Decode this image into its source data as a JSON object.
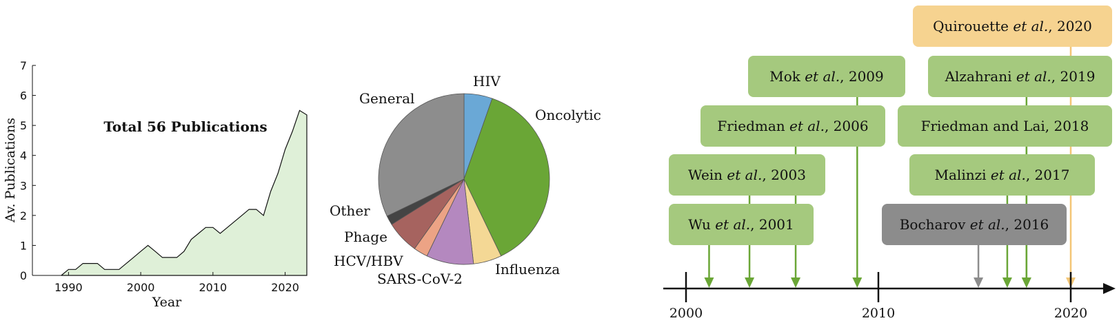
{
  "colors": {
    "area_fill": "#dff0d8",
    "green_box": "#a5c97e",
    "grey_box": "#8c8c8c",
    "orange_box": "#f6d390",
    "green_arrow": "#6aa636",
    "grey_arrow": "#8c8c8c",
    "orange_arrow": "#f3c676"
  },
  "chart_data": [
    {
      "type": "area",
      "title": "Total 56 Publications",
      "xlabel": "Year",
      "ylabel": "Av. Publications",
      "xlim": [
        1985,
        2023
      ],
      "ylim": [
        0,
        7
      ],
      "xticks": [
        "1990",
        "2000",
        "2010",
        "2020"
      ],
      "yticks": [
        "0",
        "1",
        "2",
        "3",
        "4",
        "5",
        "6",
        "7"
      ],
      "x": [
        1989,
        1990,
        1991,
        1992,
        1993,
        1994,
        1995,
        1996,
        1997,
        1998,
        1999,
        2000,
        2001,
        2002,
        2003,
        2004,
        2005,
        2006,
        2007,
        2008,
        2009,
        2010,
        2011,
        2012,
        2013,
        2014,
        2015,
        2016,
        2017,
        2018,
        2019,
        2020,
        2021,
        2022,
        2023
      ],
      "y": [
        0,
        0.2,
        0.2,
        0.4,
        0.4,
        0.4,
        0.2,
        0.2,
        0.2,
        0.4,
        0.6,
        0.8,
        1.0,
        0.8,
        0.6,
        0.6,
        0.6,
        0.8,
        1.2,
        1.4,
        1.6,
        1.6,
        1.4,
        1.6,
        1.8,
        2.0,
        2.2,
        2.2,
        2.0,
        2.8,
        3.4,
        4.2,
        4.8,
        5.5,
        5.35
      ]
    },
    {
      "type": "pie",
      "slices": [
        {
          "label": "HIV",
          "value": 3,
          "color": "#6aa8d6"
        },
        {
          "label": "Oncolytic",
          "value": 21,
          "color": "#6aa636"
        },
        {
          "label": "Influenza",
          "value": 3,
          "color": "#f4d895"
        },
        {
          "label": "SARS-CoV-2",
          "value": 5,
          "color": "#b488bf"
        },
        {
          "label": "HCV/HBV",
          "value": 1.5,
          "color": "#eca385"
        },
        {
          "label": "Phage",
          "value": 3.5,
          "color": "#a6635f"
        },
        {
          "label": "Other",
          "value": 1,
          "color": "#444444"
        },
        {
          "label": "General",
          "value": 18,
          "color": "#8d8d8d"
        }
      ]
    },
    {
      "type": "timeline",
      "axis_ticks": [
        "2000",
        "2010",
        "2020"
      ],
      "xlim": [
        1999,
        2023
      ],
      "events": [
        {
          "author": "Wu",
          "etal": "et al.",
          "year_label": "2001",
          "year": 2001.2,
          "kind": "green"
        },
        {
          "author": "Wein",
          "etal": "et al.",
          "year_label": "2003",
          "year": 2003.3,
          "kind": "green"
        },
        {
          "author": "Friedman",
          "etal": "et al.",
          "year_label": "2006",
          "year": 2005.7,
          "kind": "green"
        },
        {
          "author": "Mok",
          "etal": "et al.",
          "year_label": "2009",
          "year": 2008.9,
          "kind": "green"
        },
        {
          "author": "Bocharov",
          "etal": "et al.",
          "year_label": "2016",
          "year": 2015.2,
          "kind": "grey"
        },
        {
          "author": "Malinzi",
          "etal": "et al.",
          "year_label": "2017",
          "year": 2016.7,
          "kind": "green"
        },
        {
          "author": "Friedman and Lai",
          "etal": "",
          "year_label": "2018",
          "year": 2017.7,
          "kind": "green"
        },
        {
          "author": "Alzahrani",
          "etal": "et al.",
          "year_label": "2019",
          "year": 2017.7,
          "kind": "green"
        },
        {
          "author": "Quirouette",
          "etal": "et al.",
          "year_label": "2020",
          "year": 2020.0,
          "kind": "orange"
        }
      ]
    }
  ]
}
